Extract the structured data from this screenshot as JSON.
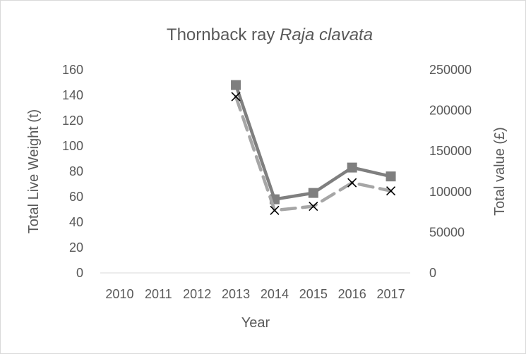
{
  "chart_data": {
    "type": "line",
    "title": "Thornback ray",
    "title_species": "Raja clavata",
    "xlabel": "Year",
    "ylabel": "Total Live Weight (t)",
    "y2label": "Total value (£)",
    "categories": [
      "2010",
      "2011",
      "2012",
      "2013",
      "2014",
      "2015",
      "2016",
      "2017"
    ],
    "ylim": [
      0,
      160
    ],
    "yticks": [
      0,
      20,
      40,
      60,
      80,
      100,
      120,
      140,
      160
    ],
    "y2lim": [
      0,
      250000
    ],
    "y2ticks": [
      0,
      50000,
      100000,
      150000,
      200000,
      250000
    ],
    "grid": false,
    "legend": "none",
    "series": [
      {
        "axis": "left",
        "style": "solid",
        "marker": "square",
        "color": "#7f7f7f",
        "values": [
          null,
          null,
          null,
          148,
          58,
          63,
          83,
          76
        ]
      },
      {
        "axis": "right",
        "style": "dashed",
        "marker": "x",
        "color": "#a6a6a6",
        "marker_color": "#000000",
        "values": [
          null,
          null,
          null,
          217000,
          77000,
          82000,
          111000,
          101000
        ]
      }
    ]
  }
}
